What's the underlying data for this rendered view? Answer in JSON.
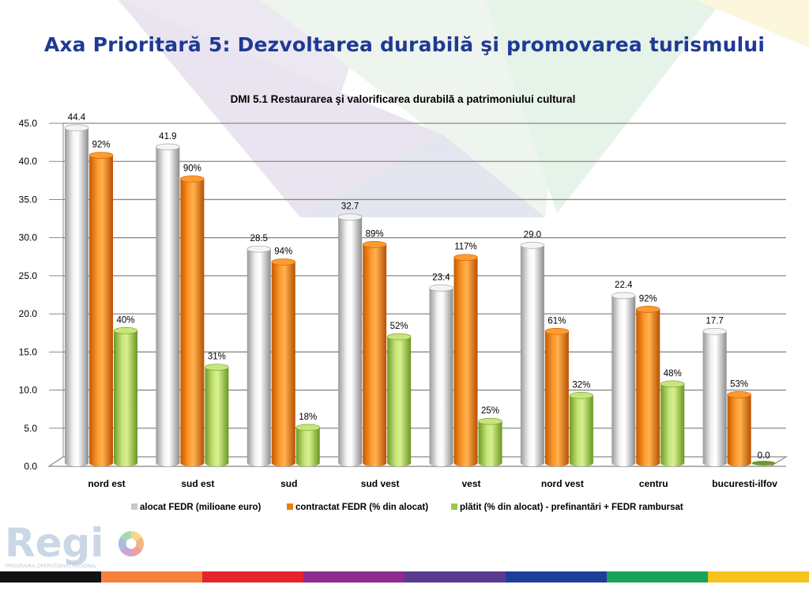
{
  "slide": {
    "title": "Axa Prioritară  5: Dezvoltarea durabilă şi promovarea turismului",
    "logo_text": "Regio",
    "logo_subtext": "PROGRAMUL OPERAȚIONAL REGIONAL",
    "stripe_colors": [
      "#111111",
      "#f7803c",
      "#e5252d",
      "#8e2a8e",
      "#5a3a8e",
      "#1f3e9c",
      "#1aa35a",
      "#f6c21d"
    ]
  },
  "chart_data": {
    "type": "bar",
    "title": "DMI 5.1 Restaurarea şi valorificarea durabilă a patrimoniului cultural",
    "categories": [
      "nord est",
      "sud est",
      "sud",
      "sud vest",
      "vest",
      "nord vest",
      "centru",
      "bucuresti-ilfov"
    ],
    "series": [
      {
        "name": "alocat FEDR (milioane euro)",
        "color": "#c8c8c8",
        "values": [
          44.4,
          41.9,
          28.5,
          32.7,
          23.4,
          29.0,
          22.4,
          17.7
        ],
        "labels": [
          "44.4",
          "41.9",
          "28.5",
          "32.7",
          "23.4",
          "29.0",
          "22.4",
          "17.7"
        ]
      },
      {
        "name": "contractat FEDR (% din alocat)",
        "color": "#f07a10",
        "values": [
          40.8,
          37.7,
          26.8,
          29.1,
          27.4,
          17.7,
          20.6,
          9.4
        ],
        "labels": [
          "92%",
          "90%",
          "94%",
          "89%",
          "117%",
          "61%",
          "92%",
          "53%"
        ]
      },
      {
        "name": "plătit (% din alocat) - prefinantări + FEDR rambursat",
        "color": "#9cc84a",
        "values": [
          17.8,
          13.0,
          5.1,
          17.0,
          5.9,
          9.3,
          10.8,
          0.0
        ],
        "labels": [
          "40%",
          "31%",
          "18%",
          "52%",
          "25%",
          "32%",
          "48%",
          "0.0"
        ]
      }
    ],
    "yticks": [
      "0.0",
      "5.0",
      "10.0",
      "15.0",
      "20.0",
      "25.0",
      "30.0",
      "35.0",
      "40.0",
      "45.0"
    ],
    "ylim": [
      0,
      45
    ],
    "grid": true,
    "legend_position": "bottom"
  }
}
